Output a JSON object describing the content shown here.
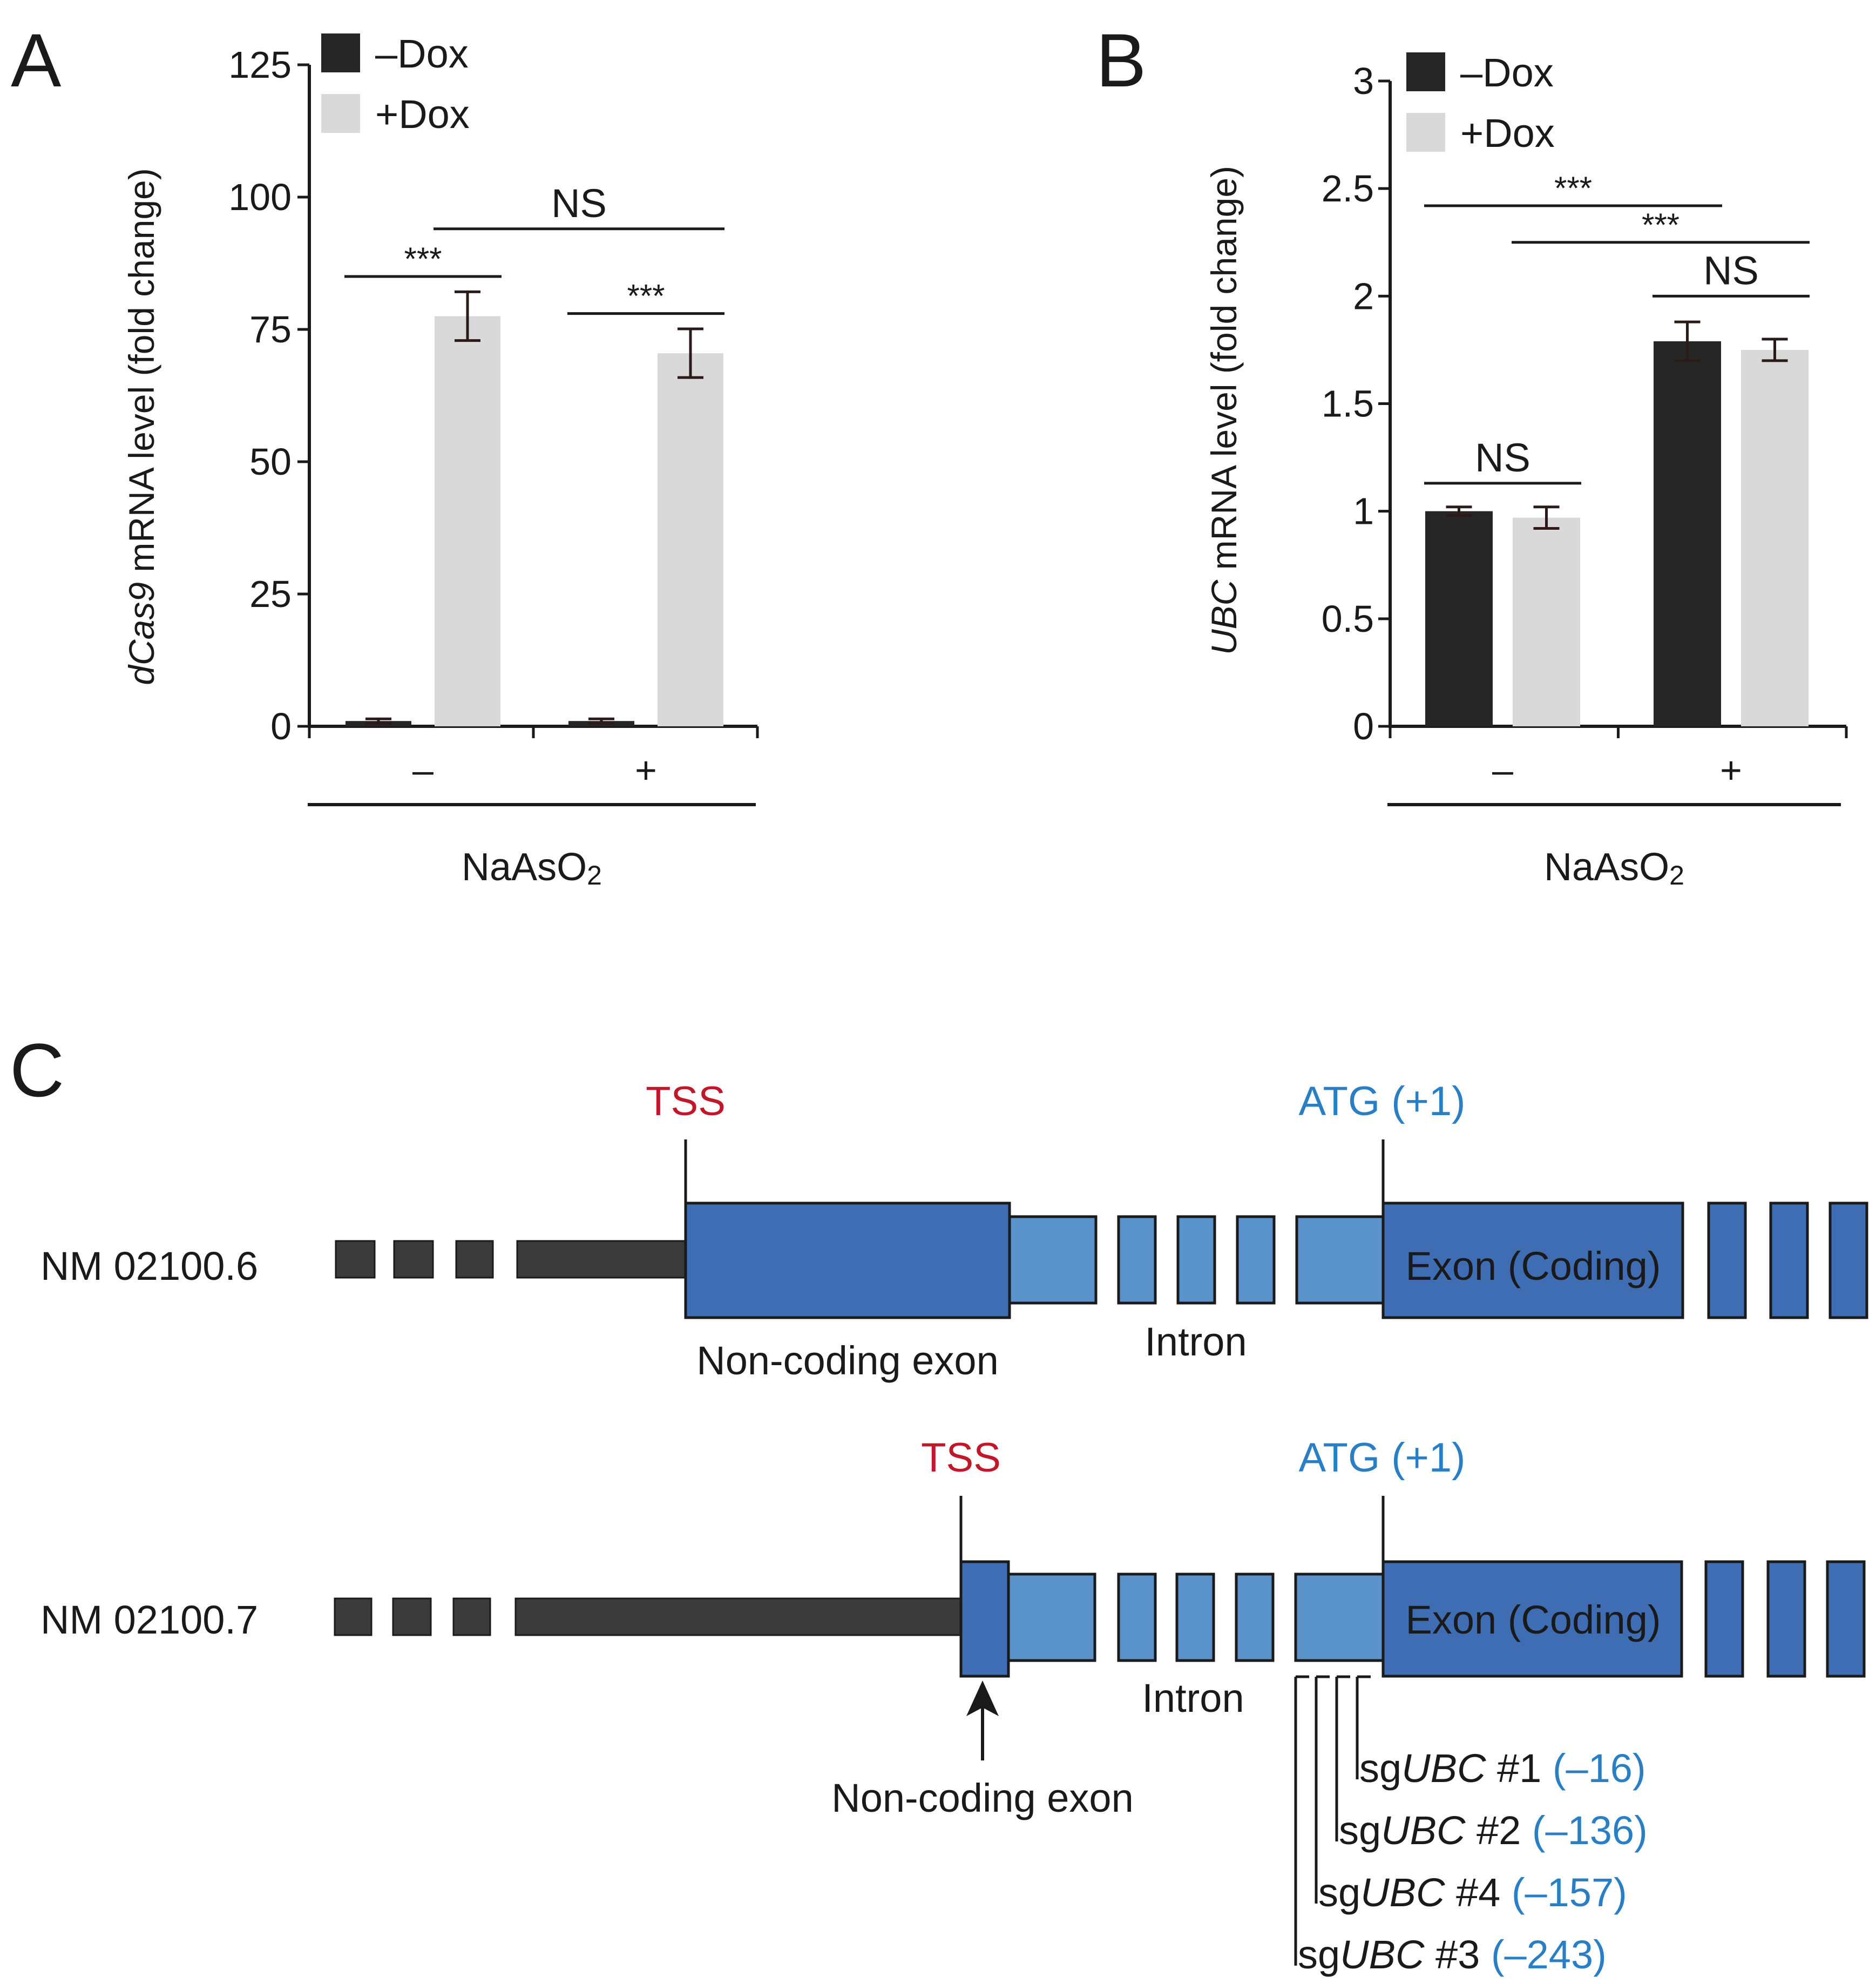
{
  "panels": {
    "a": "A",
    "b": "B",
    "c": "C"
  },
  "colors": {
    "minus_dox": "#262626",
    "plus_dox": "#d9d9d9",
    "axis": "#1a1a1a",
    "tss": "#c0182a",
    "atg": "#2a7fc4",
    "exon_dark": "#3e6db4",
    "exon_light": "#5a93cb",
    "upstream": "#3a3a3a"
  },
  "chart_data": [
    {
      "type": "bar",
      "panel": "A",
      "title": "",
      "ylabel_italic": "dCas9",
      "ylabel_rest": " mRNA level (fold change)",
      "ylim": [
        0,
        125
      ],
      "yticks": [
        0,
        25,
        50,
        75,
        100,
        125
      ],
      "categories": [
        "–",
        "+"
      ],
      "xlabel": "NaAsO",
      "xlabel_sub": "2",
      "series": [
        {
          "name": "–Dox",
          "values": [
            1.0,
            1.0
          ],
          "errors": [
            0.4,
            0.4
          ]
        },
        {
          "name": "+Dox",
          "values": [
            77.5,
            70.5
          ],
          "errors": [
            4.6,
            4.6
          ]
        }
      ],
      "significance": [
        {
          "label": "***",
          "from_group": 0,
          "from_series": 0,
          "to_group": 0,
          "to_series": 1,
          "level": 85
        },
        {
          "label": "***",
          "from_group": 1,
          "from_series": 0,
          "to_group": 1,
          "to_series": 1,
          "level": 78
        },
        {
          "label": "NS",
          "from_group": 0,
          "from_series": 1,
          "to_group": 1,
          "to_series": 1,
          "level": 94
        }
      ]
    },
    {
      "type": "bar",
      "panel": "B",
      "title": "",
      "ylabel_italic": "UBC",
      "ylabel_rest": " mRNA level (fold change)",
      "ylim": [
        0,
        3
      ],
      "yticks": [
        0,
        0.5,
        1,
        1.5,
        2,
        2.5,
        3
      ],
      "categories": [
        "–",
        "+"
      ],
      "xlabel": "NaAsO",
      "xlabel_sub": "2",
      "series": [
        {
          "name": "–Dox",
          "values": [
            1.0,
            1.79
          ],
          "errors": [
            0.02,
            0.09
          ]
        },
        {
          "name": "+Dox",
          "values": [
            0.97,
            1.75
          ],
          "errors": [
            0.05,
            0.05
          ]
        }
      ],
      "significance": [
        {
          "label": "NS",
          "from_group": 0,
          "from_series": 0,
          "to_group": 0,
          "to_series": 1,
          "level": 1.13
        },
        {
          "label": "***",
          "from_group": 0,
          "from_series": 0,
          "to_group": 1,
          "to_series": 0,
          "level": 2.42
        },
        {
          "label": "***",
          "from_group": 0,
          "from_series": 1,
          "to_group": 1,
          "to_series": 1,
          "level": 2.25
        },
        {
          "label": "NS",
          "from_group": 1,
          "from_series": 0,
          "to_group": 1,
          "to_series": 1,
          "level": 2.0
        }
      ]
    }
  ],
  "diagram": {
    "transcripts": [
      {
        "name": "NM 02100.6",
        "tss": "TSS",
        "atg": "ATG (+1)",
        "coding_exon": "Exon (Coding)",
        "noncoding_label": "Non-coding exon",
        "intron_label": "Intron"
      },
      {
        "name": "NM 02100.7",
        "tss": "TSS",
        "atg": "ATG (+1)",
        "coding_exon": "Exon (Coding)",
        "noncoding_label": "Non-coding exon",
        "intron_label": "Intron"
      }
    ],
    "sgrnas": [
      {
        "prefix": "sg",
        "gene": "UBC",
        "num": " #1 ",
        "pos": "(–16)"
      },
      {
        "prefix": "sg",
        "gene": "UBC",
        "num": " #2 ",
        "pos": "(–136)"
      },
      {
        "prefix": "sg",
        "gene": "UBC",
        "num": " #4 ",
        "pos": "(–157)"
      },
      {
        "prefix": "sg",
        "gene": "UBC",
        "num": " #3 ",
        "pos": "(–243)"
      }
    ]
  }
}
